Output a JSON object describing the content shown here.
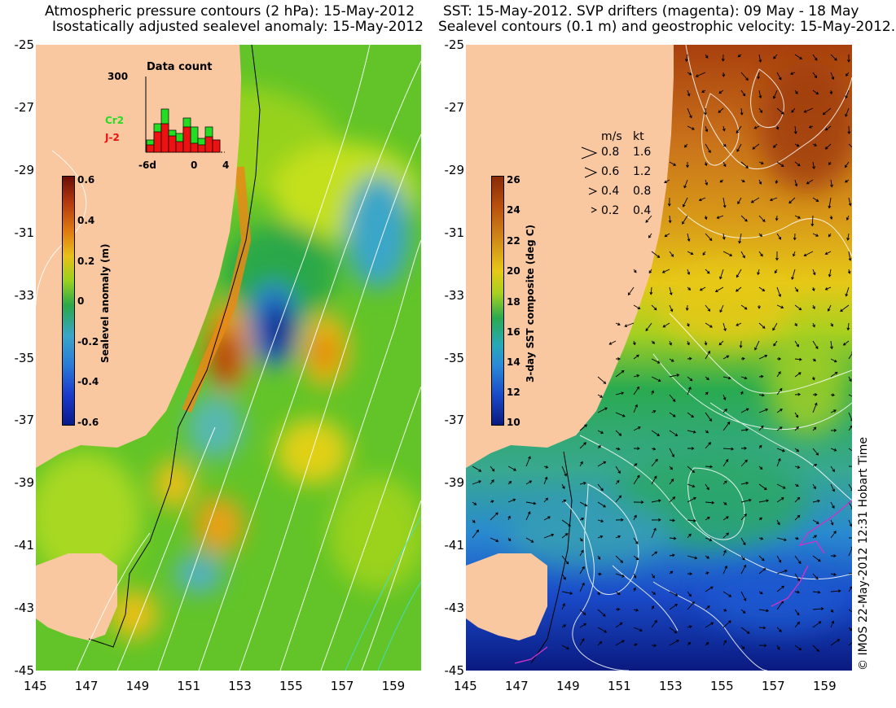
{
  "left": {
    "title_line1": "Atmospheric pressure contours (2 hPa): 15-May-2012",
    "title_line2": "Isostatically adjusted sealevel anomaly: 15-May-2012",
    "colorbar_label": "Sealevel anomaly (m)",
    "colorbar_ticks": [
      "0.6",
      "0.4",
      "0.2",
      "0",
      "-0.2",
      "-0.4",
      "-0.6"
    ],
    "inset": {
      "title": "Data count",
      "ymax_label": "300",
      "x_labels": [
        "-6d",
        "0",
        "4"
      ],
      "series": [
        {
          "name": "Cr2",
          "color": "#22dd22"
        },
        {
          "name": "J-2",
          "color": "#ee1111"
        }
      ]
    }
  },
  "right": {
    "title_line1": "SST: 15-May-2012. SVP drifters (magenta): 09 May - 18 May",
    "title_line2": "Sealevel contours (0.1 m) and geostrophic velocity: 15-May-2012.",
    "colorbar_label": "3-day SST composite (deg C)",
    "colorbar_ticks": [
      "26",
      "24",
      "22",
      "20",
      "18",
      "16",
      "14",
      "12",
      "10"
    ],
    "speed_legend": {
      "header_ms": "m/s",
      "header_kt": "kt",
      "rows": [
        {
          "ms": "0.8",
          "kt": "1.6"
        },
        {
          "ms": "0.6",
          "kt": "1.2"
        },
        {
          "ms": "0.4",
          "kt": "0.8"
        },
        {
          "ms": "0.2",
          "kt": "0.4"
        }
      ]
    }
  },
  "axes": {
    "y_labels": [
      "-25",
      "-27",
      "-29",
      "-31",
      "-33",
      "-35",
      "-37",
      "-39",
      "-41",
      "-43",
      "-45"
    ],
    "x_labels": [
      "145",
      "147",
      "149",
      "151",
      "153",
      "155",
      "157",
      "159"
    ]
  },
  "credit": "© IMOS 22-May-2012 12:31 Hobart Time",
  "colors": {
    "land": "#f9c8a0",
    "sla_high": "#b2360e",
    "sla_low": "#0a1a8a",
    "sst_warm": "#b05010",
    "sst_cold": "#0a2a9a",
    "drifter": "#cc33cc"
  }
}
